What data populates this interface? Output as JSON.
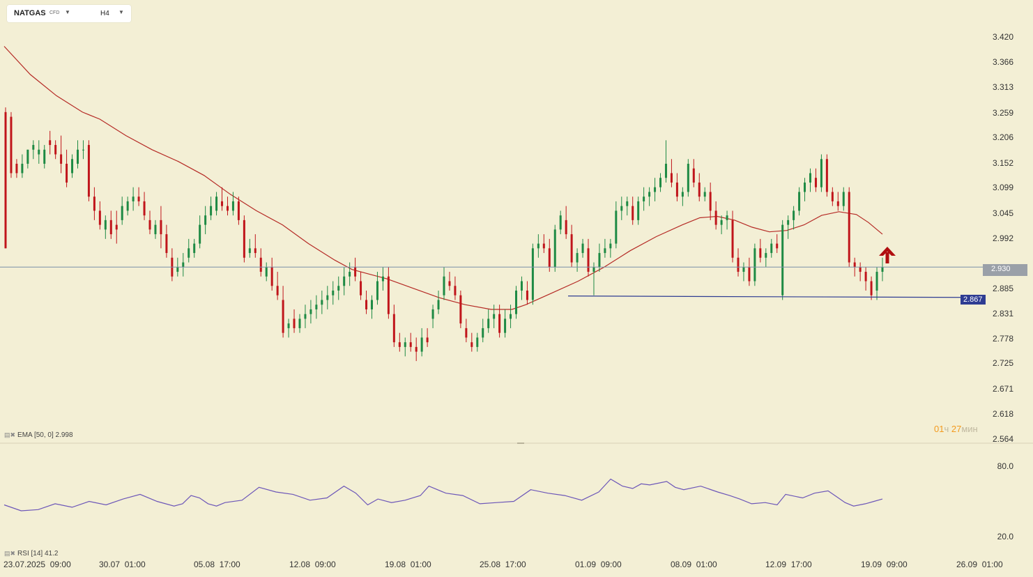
{
  "toolbar": {
    "symbol": "NATGAS",
    "type": "CFD",
    "timeframe": "H4",
    "symbol_dropdown_icon": "caret-down-icon",
    "timeframe_dropdown_icon": "caret-down-icon"
  },
  "price_axis": [
    "3.420",
    "3.366",
    "3.313",
    "3.259",
    "3.206",
    "3.152",
    "3.099",
    "3.045",
    "2.992",
    "2.885",
    "2.831",
    "2.778",
    "2.725",
    "2.671",
    "2.618",
    "2.564"
  ],
  "rsi_axis": [
    "80.0",
    "20.0"
  ],
  "time_axis": [
    "23.07.2025  09:00",
    "30.07  01:00",
    "05.08  17:00",
    "12.08  09:00",
    "19.08  01:00",
    "25.08  17:00",
    "01.09  09:00",
    "08.09  01:00",
    "12.09  17:00",
    "19.09  09:00",
    "26.09  01:00"
  ],
  "current_price": "2.930",
  "support_level": "2.867",
  "arrow_icon": "up-arrow-icon",
  "timer": {
    "hours": "01",
    "h_unit": "ч",
    "minutes": "27",
    "m_unit": "мин"
  },
  "ema_label": "EMA  [50, 0]  2.998",
  "rsi_label": "RSI  [14]  41.2",
  "colors": {
    "up": "#1e8a44",
    "down": "#c0151b",
    "ema": "#b52a25",
    "rsi": "#6c56b8",
    "hline": "#7a8fa8",
    "support": "#2e3c92"
  },
  "chart_data": {
    "type": "candlestick",
    "ylim": [
      2.564,
      3.42
    ],
    "rsi_ylim": [
      20,
      80
    ],
    "current": 2.93,
    "support": 2.867,
    "ema": [
      [
        0,
        3.4
      ],
      [
        15,
        3.34
      ],
      [
        30,
        3.295
      ],
      [
        45,
        3.26
      ],
      [
        55,
        3.245
      ],
      [
        70,
        3.21
      ],
      [
        85,
        3.18
      ],
      [
        100,
        3.155
      ],
      [
        115,
        3.125
      ],
      [
        130,
        3.085
      ],
      [
        145,
        3.05
      ],
      [
        160,
        3.02
      ],
      [
        175,
        2.98
      ],
      [
        190,
        2.945
      ],
      [
        200,
        2.925
      ],
      [
        210,
        2.915
      ],
      [
        220,
        2.905
      ],
      [
        235,
        2.885
      ],
      [
        250,
        2.865
      ],
      [
        265,
        2.85
      ],
      [
        280,
        2.84
      ],
      [
        292,
        2.84
      ],
      [
        300,
        2.85
      ],
      [
        315,
        2.875
      ],
      [
        330,
        2.9
      ],
      [
        345,
        2.93
      ],
      [
        360,
        2.965
      ],
      [
        375,
        2.995
      ],
      [
        390,
        3.02
      ],
      [
        400,
        3.035
      ],
      [
        410,
        3.038
      ],
      [
        420,
        3.03
      ],
      [
        430,
        3.015
      ],
      [
        440,
        3.005
      ],
      [
        450,
        3.008
      ],
      [
        460,
        3.02
      ],
      [
        470,
        3.04
      ],
      [
        480,
        3.048
      ],
      [
        490,
        3.042
      ],
      [
        497,
        3.025
      ],
      [
        505,
        3.0
      ]
    ],
    "candles": [
      [
        3.26,
        3.27,
        2.97,
        2.97
      ],
      [
        3.25,
        3.26,
        3.12,
        3.13
      ],
      [
        3.15,
        3.16,
        3.12,
        3.13
      ],
      [
        3.13,
        3.17,
        3.12,
        3.15
      ],
      [
        3.15,
        3.18,
        3.14,
        3.18
      ],
      [
        3.18,
        3.2,
        3.16,
        3.19
      ],
      [
        3.17,
        3.2,
        3.15,
        3.18
      ],
      [
        3.15,
        3.19,
        3.14,
        3.18
      ],
      [
        3.2,
        3.22,
        3.17,
        3.19
      ],
      [
        3.19,
        3.2,
        3.16,
        3.17
      ],
      [
        3.17,
        3.21,
        3.13,
        3.15
      ],
      [
        3.15,
        3.18,
        3.1,
        3.11
      ],
      [
        3.13,
        3.17,
        3.12,
        3.16
      ],
      [
        3.15,
        3.2,
        3.14,
        3.18
      ],
      [
        3.18,
        3.2,
        3.16,
        3.18
      ],
      [
        3.19,
        3.2,
        3.07,
        3.08
      ],
      [
        3.08,
        3.1,
        3.03,
        3.05
      ],
      [
        3.05,
        3.07,
        3.01,
        3.02
      ],
      [
        3.01,
        3.04,
        2.99,
        3.03
      ],
      [
        3.03,
        3.05,
        2.99,
        3.0
      ],
      [
        3.02,
        3.05,
        2.98,
        3.01
      ],
      [
        3.03,
        3.08,
        3.02,
        3.06
      ],
      [
        3.05,
        3.08,
        3.04,
        3.07
      ],
      [
        3.07,
        3.1,
        3.05,
        3.08
      ],
      [
        3.08,
        3.1,
        3.06,
        3.07
      ],
      [
        3.07,
        3.09,
        3.03,
        3.04
      ],
      [
        3.03,
        3.05,
        3.0,
        3.01
      ],
      [
        3.0,
        3.03,
        2.99,
        3.02
      ],
      [
        3.03,
        3.06,
        2.97,
        3.0
      ],
      [
        3.0,
        3.02,
        2.95,
        2.96
      ],
      [
        2.95,
        2.97,
        2.9,
        2.91
      ],
      [
        2.92,
        2.95,
        2.91,
        2.93
      ],
      [
        2.93,
        2.96,
        2.91,
        2.94
      ],
      [
        2.95,
        2.99,
        2.94,
        2.97
      ],
      [
        2.96,
        2.99,
        2.95,
        2.98
      ],
      [
        2.98,
        3.04,
        2.97,
        3.02
      ],
      [
        3.02,
        3.06,
        3.0,
        3.04
      ],
      [
        3.04,
        3.08,
        3.03,
        3.06
      ],
      [
        3.05,
        3.09,
        3.04,
        3.08
      ],
      [
        3.07,
        3.1,
        3.05,
        3.06
      ],
      [
        3.06,
        3.08,
        3.04,
        3.05
      ],
      [
        3.05,
        3.09,
        3.04,
        3.07
      ],
      [
        3.07,
        3.08,
        3.02,
        3.03
      ],
      [
        3.03,
        3.04,
        2.94,
        2.95
      ],
      [
        2.96,
        2.99,
        2.95,
        2.97
      ],
      [
        2.97,
        3.0,
        2.95,
        2.96
      ],
      [
        2.95,
        2.97,
        2.91,
        2.92
      ],
      [
        2.91,
        2.94,
        2.9,
        2.93
      ],
      [
        2.93,
        2.95,
        2.88,
        2.89
      ],
      [
        2.89,
        2.92,
        2.86,
        2.87
      ],
      [
        2.86,
        2.89,
        2.78,
        2.79
      ],
      [
        2.8,
        2.82,
        2.78,
        2.81
      ],
      [
        2.82,
        2.84,
        2.79,
        2.8
      ],
      [
        2.8,
        2.83,
        2.79,
        2.82
      ],
      [
        2.82,
        2.85,
        2.8,
        2.83
      ],
      [
        2.83,
        2.86,
        2.81,
        2.84
      ],
      [
        2.84,
        2.87,
        2.82,
        2.85
      ],
      [
        2.85,
        2.88,
        2.83,
        2.86
      ],
      [
        2.86,
        2.89,
        2.84,
        2.87
      ],
      [
        2.87,
        2.9,
        2.85,
        2.88
      ],
      [
        2.88,
        2.91,
        2.86,
        2.89
      ],
      [
        2.89,
        2.93,
        2.87,
        2.91
      ],
      [
        2.91,
        2.94,
        2.89,
        2.92
      ],
      [
        2.93,
        2.95,
        2.9,
        2.91
      ],
      [
        2.9,
        2.92,
        2.86,
        2.87
      ],
      [
        2.86,
        2.88,
        2.83,
        2.84
      ],
      [
        2.84,
        2.87,
        2.82,
        2.86
      ],
      [
        2.86,
        2.92,
        2.85,
        2.9
      ],
      [
        2.9,
        2.93,
        2.88,
        2.91
      ],
      [
        2.91,
        2.93,
        2.82,
        2.83
      ],
      [
        2.83,
        2.85,
        2.76,
        2.77
      ],
      [
        2.77,
        2.79,
        2.75,
        2.76
      ],
      [
        2.76,
        2.78,
        2.74,
        2.77
      ],
      [
        2.77,
        2.79,
        2.75,
        2.76
      ],
      [
        2.76,
        2.78,
        2.73,
        2.75
      ],
      [
        2.75,
        2.8,
        2.74,
        2.78
      ],
      [
        2.78,
        2.8,
        2.76,
        2.77
      ],
      [
        2.82,
        2.85,
        2.8,
        2.84
      ],
      [
        2.84,
        2.88,
        2.83,
        2.86
      ],
      [
        2.87,
        2.93,
        2.86,
        2.91
      ],
      [
        2.9,
        2.92,
        2.88,
        2.89
      ],
      [
        2.89,
        2.91,
        2.86,
        2.87
      ],
      [
        2.87,
        2.88,
        2.8,
        2.81
      ],
      [
        2.8,
        2.82,
        2.77,
        2.78
      ],
      [
        2.77,
        2.79,
        2.75,
        2.76
      ],
      [
        2.76,
        2.79,
        2.75,
        2.78
      ],
      [
        2.78,
        2.82,
        2.77,
        2.8
      ],
      [
        2.8,
        2.84,
        2.79,
        2.82
      ],
      [
        2.82,
        2.85,
        2.8,
        2.83
      ],
      [
        2.83,
        2.85,
        2.78,
        2.79
      ],
      [
        2.79,
        2.84,
        2.78,
        2.82
      ],
      [
        2.82,
        2.85,
        2.8,
        2.83
      ],
      [
        2.83,
        2.89,
        2.82,
        2.88
      ],
      [
        2.88,
        2.91,
        2.86,
        2.9
      ],
      [
        2.88,
        2.9,
        2.85,
        2.86
      ],
      [
        2.86,
        2.98,
        2.85,
        2.97
      ],
      [
        2.97,
        3.0,
        2.95,
        2.98
      ],
      [
        2.98,
        3.0,
        2.96,
        2.97
      ],
      [
        2.97,
        2.99,
        2.92,
        2.93
      ],
      [
        2.93,
        3.02,
        2.92,
        3.01
      ],
      [
        3.01,
        3.05,
        3.0,
        3.04
      ],
      [
        3.03,
        3.06,
        2.99,
        3.0
      ],
      [
        3.0,
        3.02,
        2.93,
        2.94
      ],
      [
        2.94,
        2.97,
        2.92,
        2.96
      ],
      [
        2.96,
        2.99,
        2.95,
        2.98
      ],
      [
        2.97,
        2.99,
        2.91,
        2.92
      ],
      [
        2.92,
        2.94,
        2.87,
        2.93
      ],
      [
        2.93,
        2.98,
        2.92,
        2.96
      ],
      [
        2.96,
        2.99,
        2.95,
        2.97
      ],
      [
        2.97,
        2.99,
        2.95,
        2.98
      ],
      [
        2.98,
        3.07,
        2.97,
        3.05
      ],
      [
        3.05,
        3.08,
        3.03,
        3.06
      ],
      [
        3.06,
        3.08,
        3.04,
        3.07
      ],
      [
        3.06,
        3.08,
        3.02,
        3.03
      ],
      [
        3.03,
        3.08,
        3.02,
        3.07
      ],
      [
        3.07,
        3.1,
        3.05,
        3.08
      ],
      [
        3.08,
        3.1,
        3.06,
        3.09
      ],
      [
        3.09,
        3.12,
        3.07,
        3.1
      ],
      [
        3.1,
        3.13,
        3.09,
        3.12
      ],
      [
        3.12,
        3.2,
        3.11,
        3.15
      ],
      [
        3.13,
        3.16,
        3.1,
        3.11
      ],
      [
        3.11,
        3.13,
        3.07,
        3.08
      ],
      [
        3.08,
        3.1,
        3.06,
        3.09
      ],
      [
        3.09,
        3.16,
        3.08,
        3.15
      ],
      [
        3.14,
        3.16,
        3.1,
        3.11
      ],
      [
        3.11,
        3.13,
        3.07,
        3.08
      ],
      [
        3.08,
        3.1,
        3.07,
        3.09
      ],
      [
        3.09,
        3.11,
        3.03,
        3.05
      ],
      [
        3.05,
        3.07,
        3.01,
        3.02
      ],
      [
        3.02,
        3.04,
        3.0,
        3.03
      ],
      [
        3.03,
        3.05,
        3.01,
        3.04
      ],
      [
        3.03,
        3.05,
        2.94,
        2.95
      ],
      [
        2.95,
        2.97,
        2.91,
        2.92
      ],
      [
        2.92,
        2.94,
        2.9,
        2.93
      ],
      [
        2.93,
        2.95,
        2.89,
        2.9
      ],
      [
        2.9,
        2.98,
        2.89,
        2.97
      ],
      [
        2.97,
        2.99,
        2.94,
        2.95
      ],
      [
        2.95,
        2.97,
        2.93,
        2.96
      ],
      [
        2.96,
        2.99,
        2.95,
        2.98
      ],
      [
        2.98,
        3.0,
        2.96,
        2.97
      ],
      [
        2.87,
        3.03,
        2.86,
        3.02
      ],
      [
        3.02,
        3.04,
        2.99,
        3.03
      ],
      [
        3.03,
        3.06,
        3.01,
        3.05
      ],
      [
        3.05,
        3.1,
        3.04,
        3.09
      ],
      [
        3.09,
        3.12,
        3.07,
        3.11
      ],
      [
        3.11,
        3.14,
        3.09,
        3.13
      ],
      [
        3.12,
        3.14,
        3.09,
        3.1
      ],
      [
        3.1,
        3.17,
        3.09,
        3.16
      ],
      [
        3.16,
        3.17,
        3.08,
        3.09
      ],
      [
        3.09,
        3.1,
        3.06,
        3.07
      ],
      [
        3.07,
        3.09,
        3.05,
        3.06
      ],
      [
        3.06,
        3.1,
        3.05,
        3.09
      ],
      [
        3.09,
        3.1,
        2.93,
        2.94
      ],
      [
        2.94,
        2.95,
        2.91,
        2.93
      ],
      [
        2.93,
        2.94,
        2.9,
        2.92
      ],
      [
        2.92,
        2.93,
        2.88,
        2.9
      ],
      [
        2.9,
        2.91,
        2.86,
        2.87
      ],
      [
        2.88,
        2.93,
        2.86,
        2.92
      ],
      [
        2.92,
        2.95,
        2.9,
        2.93
      ]
    ],
    "rsi": [
      [
        0,
        47
      ],
      [
        10,
        42
      ],
      [
        20,
        43
      ],
      [
        30,
        48
      ],
      [
        40,
        45
      ],
      [
        50,
        50
      ],
      [
        60,
        47
      ],
      [
        70,
        52
      ],
      [
        80,
        56
      ],
      [
        90,
        50
      ],
      [
        100,
        46
      ],
      [
        105,
        48
      ],
      [
        110,
        55
      ],
      [
        115,
        53
      ],
      [
        120,
        48
      ],
      [
        125,
        46
      ],
      [
        130,
        49
      ],
      [
        140,
        51
      ],
      [
        150,
        62
      ],
      [
        160,
        58
      ],
      [
        170,
        56
      ],
      [
        180,
        51
      ],
      [
        190,
        53
      ],
      [
        200,
        63
      ],
      [
        207,
        57
      ],
      [
        214,
        47
      ],
      [
        220,
        52
      ],
      [
        228,
        49
      ],
      [
        236,
        51
      ],
      [
        245,
        55
      ],
      [
        250,
        63
      ],
      [
        260,
        57
      ],
      [
        270,
        55
      ],
      [
        280,
        48
      ],
      [
        290,
        49
      ],
      [
        300,
        50
      ],
      [
        310,
        60
      ],
      [
        320,
        57
      ],
      [
        330,
        55
      ],
      [
        340,
        51
      ],
      [
        350,
        58
      ],
      [
        357,
        69
      ],
      [
        364,
        63
      ],
      [
        370,
        61
      ],
      [
        375,
        65
      ],
      [
        380,
        64
      ],
      [
        390,
        67
      ],
      [
        395,
        62
      ],
      [
        400,
        60
      ],
      [
        410,
        63
      ],
      [
        420,
        58
      ],
      [
        427,
        55
      ],
      [
        433,
        52
      ],
      [
        440,
        48
      ],
      [
        448,
        49
      ],
      [
        455,
        47
      ],
      [
        460,
        56
      ],
      [
        470,
        53
      ],
      [
        477,
        57
      ],
      [
        485,
        59
      ],
      [
        490,
        54
      ],
      [
        495,
        49
      ],
      [
        500,
        46
      ],
      [
        507,
        48
      ],
      [
        512,
        50
      ],
      [
        517,
        52
      ]
    ]
  }
}
